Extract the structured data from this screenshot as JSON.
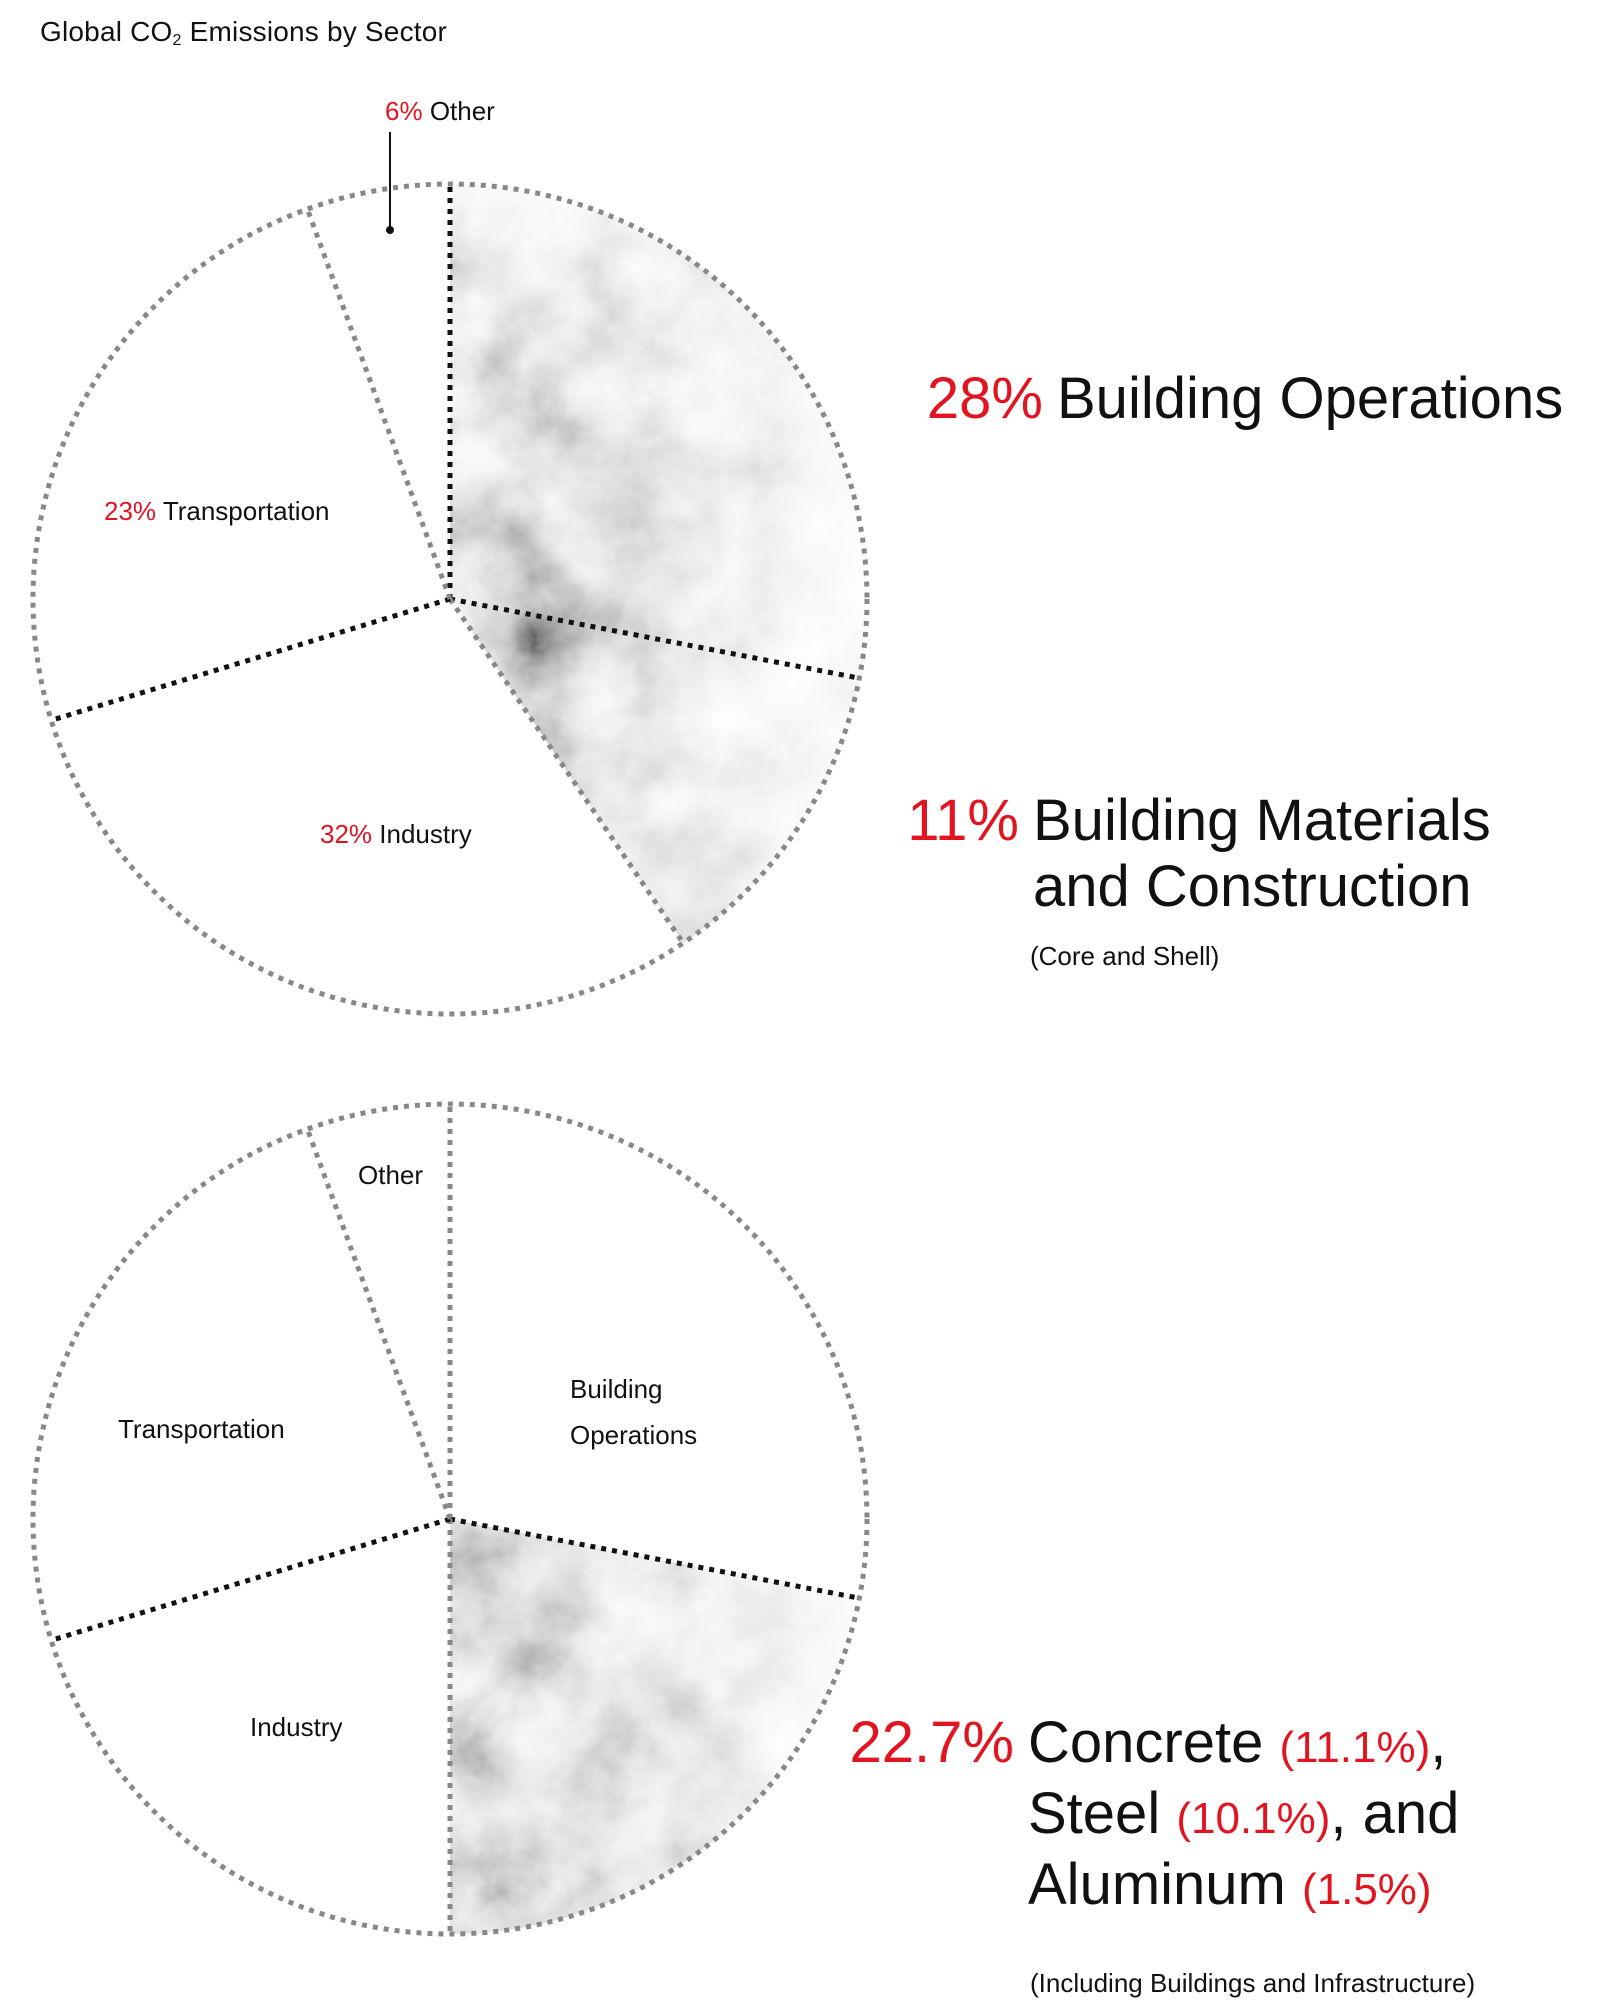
{
  "title": "Global CO",
  "title_sub": "2",
  "title_tail": " Emissions by Sector",
  "colors": {
    "accent": "#e1141f",
    "outline": "#888888",
    "divider": "#111111"
  },
  "chart_data": [
    {
      "type": "pie",
      "title": "Global CO2 Emissions by Sector",
      "slices": [
        {
          "name": "Building Operations",
          "value": 28,
          "label_pct": "28%",
          "label": "Building Operations",
          "highlighted": true
        },
        {
          "name": "Building Materials and Construction",
          "value": 11,
          "label_pct": "11%",
          "label": "Building Materials and Construction",
          "note": "(Core and Shell)",
          "highlighted": true
        },
        {
          "name": "Industry",
          "value": 32,
          "label_pct": "32%",
          "label": "Industry"
        },
        {
          "name": "Transportation",
          "value": 23,
          "label_pct": "23%",
          "label": "Transportation"
        },
        {
          "name": "Other",
          "value": 6,
          "label_pct": "6%",
          "label": "Other"
        }
      ]
    },
    {
      "type": "pie",
      "slices": [
        {
          "name": "Building Operations",
          "label": "Building Operations",
          "label_lines": [
            "Building",
            "Operations"
          ]
        },
        {
          "name": "Concrete, Steel, and Aluminum",
          "value": 22.7,
          "label_pct": "22.7%",
          "highlighted": true,
          "components": [
            {
              "name": "Concrete",
              "value": 11.1,
              "label_pct": "(11.1%)"
            },
            {
              "name": "Steel",
              "value": 10.1,
              "label_pct": "(10.1%)"
            },
            {
              "name": "Aluminum",
              "value": 1.5,
              "label_pct": "(1.5%)"
            }
          ],
          "note": "(Including Buildings and Infrastructure)"
        },
        {
          "name": "Industry",
          "label": "Industry"
        },
        {
          "name": "Transportation",
          "label": "Transportation"
        },
        {
          "name": "Other",
          "label": "Other"
        }
      ]
    }
  ],
  "callouts": {
    "ops_pct": "28%",
    "ops_label": "Building Operations",
    "mat_pct": "11%",
    "mat_line1": "Building Materials",
    "mat_line2": "and Construction",
    "mat_note": "(Core and Shell)",
    "csa_pct": "22.7%",
    "csa_w1": "Concrete ",
    "csa_p1": "(11.1%)",
    "csa_t1": ",",
    "csa_w2": "Steel ",
    "csa_p2": "(10.1%)",
    "csa_t2": ", and",
    "csa_w3": "Aluminum ",
    "csa_p3": "(1.5%)",
    "csa_note": "(Including Buildings and Infrastructure)"
  }
}
